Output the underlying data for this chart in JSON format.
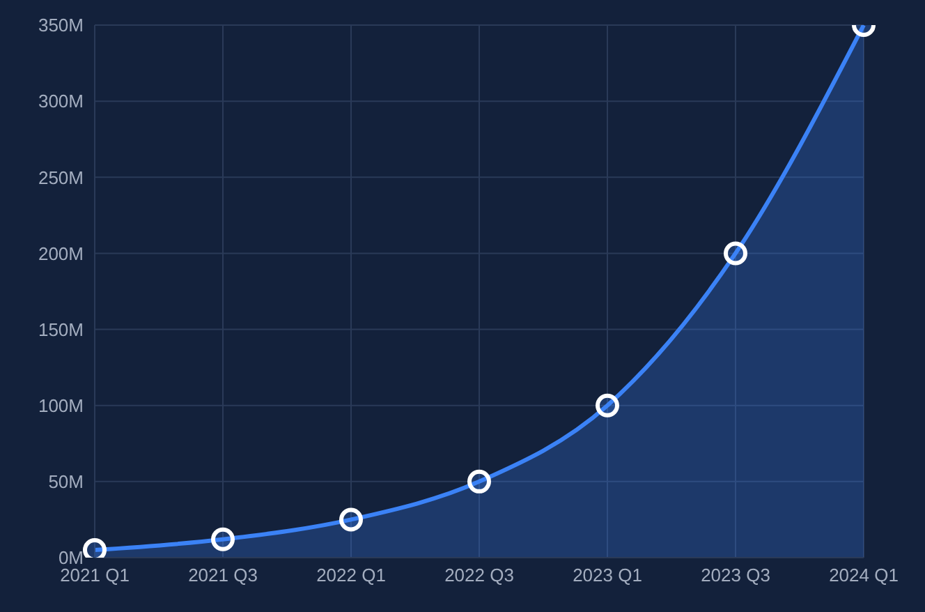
{
  "chart_data": {
    "type": "area",
    "categories": [
      "2021 Q1",
      "2021 Q3",
      "2022 Q1",
      "2022 Q3",
      "2023 Q1",
      "2023 Q3",
      "2024 Q1"
    ],
    "series": [
      {
        "color": "#3b82f6",
        "values": [
          5,
          12,
          25,
          50,
          100,
          200,
          350
        ]
      }
    ],
    "ylim": [
      0,
      350
    ],
    "yticks": [
      {
        "value": 0,
        "label": "0M"
      },
      {
        "value": 50,
        "label": "50M"
      },
      {
        "value": 100,
        "label": "100M"
      },
      {
        "value": 150,
        "label": "150M"
      },
      {
        "value": 200,
        "label": "200M"
      },
      {
        "value": 250,
        "label": "250M"
      },
      {
        "value": 300,
        "label": "300M"
      },
      {
        "value": 350,
        "label": "350M"
      }
    ],
    "grid": true,
    "marker": "circle",
    "legend": false
  }
}
